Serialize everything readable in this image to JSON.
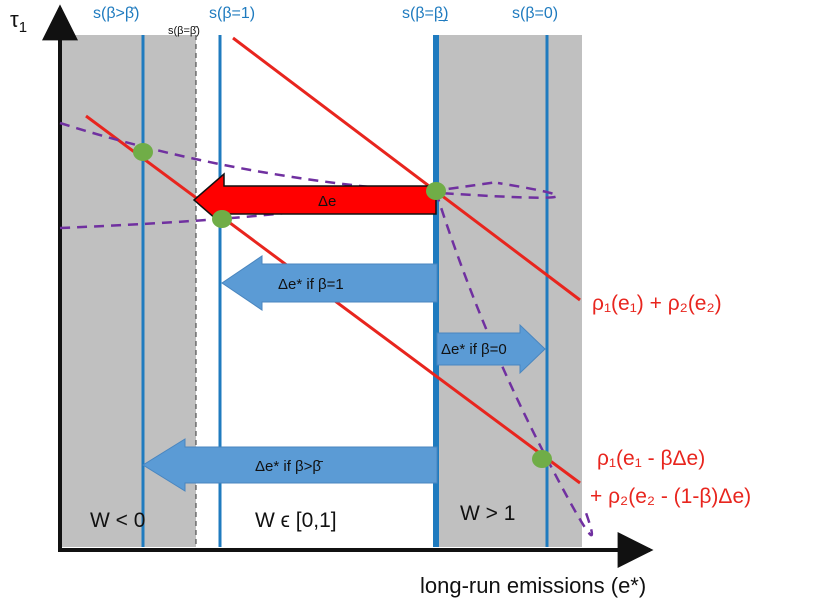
{
  "axes": {
    "y_label": "τ",
    "y_label_sub": "1",
    "x_label": "long-run emissions (e*)"
  },
  "vertical_lines": {
    "beta_above_bar": "s(β>β̄)",
    "beta_eq_bar": "s(β=β̄)",
    "beta_one": "s(β=1)",
    "beta_lower": "s(β=β̲)",
    "beta_zero": "s(β=0)"
  },
  "curves": {
    "upper": "ρ₁(e₁) + ρ₂(e₂)",
    "lower_line1": "ρ₁(e₁ - βΔe)",
    "lower_line2": "+ ρ₂(e₂ - (1-β)Δe)"
  },
  "arrows": {
    "delta_e": "Δe",
    "delta_e_beta_one": "Δe* if β=1",
    "delta_e_beta_zero": "Δe* if β=0",
    "delta_e_beta_bar": "Δe* if β>β̄"
  },
  "regions": {
    "left": "W < 0",
    "middle": "W ϵ [0,1]",
    "right": "W > 1"
  },
  "colors": {
    "gray_region": "#c0c0c0",
    "blue_line": "#1f7bbf",
    "red_curve": "#e8251e",
    "purple_dash": "#7030a0",
    "green_point": "#70ad47",
    "blue_arrow": "#5b9bd5",
    "red_arrow": "#ff0000"
  }
}
